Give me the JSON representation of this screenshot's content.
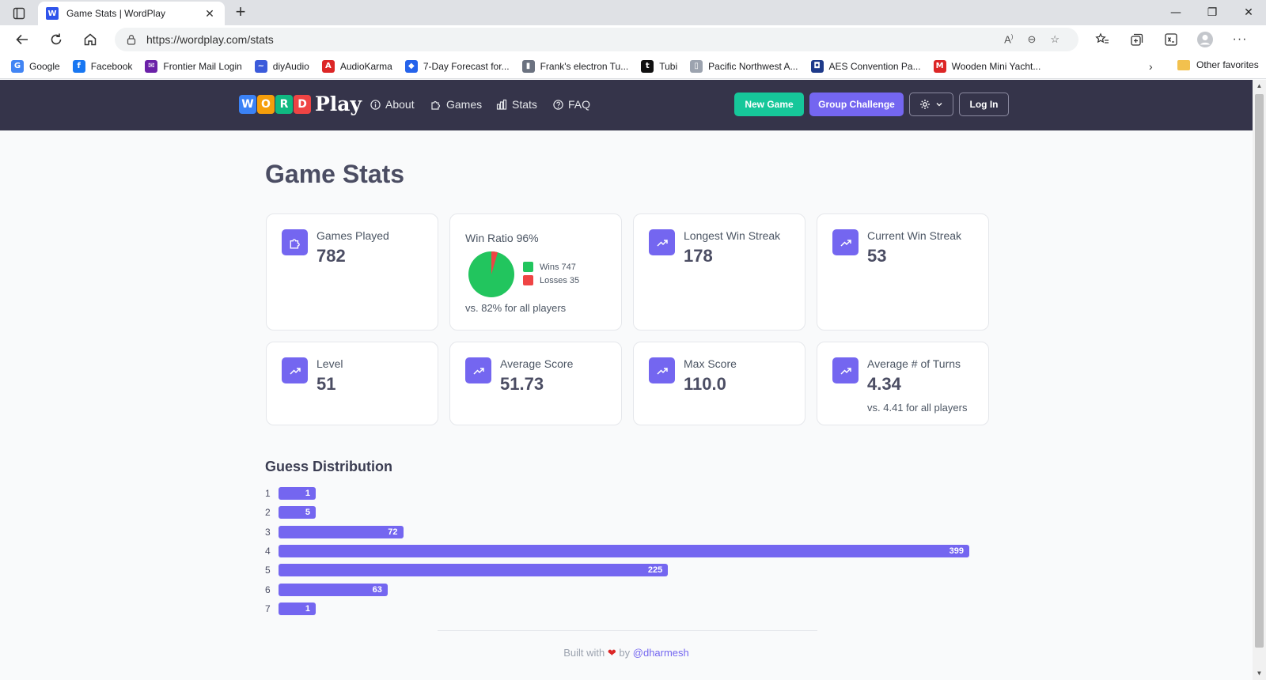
{
  "browser": {
    "tab_title": "Game Stats | WordPlay",
    "tab_favicon": "W",
    "url": "https://wordplay.com/stats",
    "bookmarks": [
      {
        "label": "Google",
        "icon": "G",
        "color": "#4285f4"
      },
      {
        "label": "Facebook",
        "icon": "f",
        "color": "#1877f2"
      },
      {
        "label": "Frontier Mail Login",
        "icon": "✉",
        "color": "#6b21a8"
      },
      {
        "label": "diyAudio",
        "icon": "~",
        "color": "#3b5bdb"
      },
      {
        "label": "AudioKarma",
        "icon": "A",
        "color": "#dc2626"
      },
      {
        "label": "7-Day Forecast for...",
        "icon": "◆",
        "color": "#2563eb"
      },
      {
        "label": "Frank's electron Tu...",
        "icon": "▮",
        "color": "#6b7280"
      },
      {
        "label": "Tubi",
        "icon": "t",
        "color": "#111111"
      },
      {
        "label": "Pacific Northwest A...",
        "icon": "▯",
        "color": "#9ca3af"
      },
      {
        "label": "AES Convention Pa...",
        "icon": "◘",
        "color": "#1e3a8a"
      },
      {
        "label": "Wooden Mini Yacht...",
        "icon": "M",
        "color": "#dc2626"
      }
    ],
    "other_favorites": "Other favorites"
  },
  "header": {
    "logo_tiles": [
      {
        "letter": "W",
        "color": "#3b82f6"
      },
      {
        "letter": "O",
        "color": "#f59e0b"
      },
      {
        "letter": "R",
        "color": "#10b981"
      },
      {
        "letter": "D",
        "color": "#ef4444"
      }
    ],
    "logo_play": "Play",
    "nav": {
      "about": "About",
      "games": "Games",
      "stats": "Stats",
      "faq": "FAQ"
    },
    "new_game": "New Game",
    "group_challenge": "Group Challenge",
    "login": "Log In"
  },
  "page": {
    "title": "Game Stats",
    "cards": {
      "games_played": {
        "label": "Games Played",
        "value": "782"
      },
      "win_ratio": {
        "label": "Win Ratio 96%",
        "wins": "Wins 747",
        "losses": "Losses 35",
        "sub": "vs. 82% for all players",
        "wins_count": 747,
        "losses_count": 35
      },
      "longest_streak": {
        "label": "Longest Win Streak",
        "value": "178"
      },
      "current_streak": {
        "label": "Current Win Streak",
        "value": "53"
      },
      "level": {
        "label": "Level",
        "value": "51"
      },
      "avg_score": {
        "label": "Average Score",
        "value": "51.73"
      },
      "max_score": {
        "label": "Max Score",
        "value": "110.0"
      },
      "avg_turns": {
        "label": "Average # of Turns",
        "value": "4.34",
        "sub": "vs. 4.41 for all players"
      }
    },
    "distribution_title": "Guess Distribution"
  },
  "colors": {
    "accent": "#7466f0",
    "green": "#16c79a",
    "pie_win": "#22c55e",
    "pie_loss": "#ef4444"
  },
  "chart_data": {
    "type": "bar",
    "title": "Guess Distribution",
    "categories": [
      "1",
      "2",
      "3",
      "4",
      "5",
      "6",
      "7"
    ],
    "values": [
      1,
      5,
      72,
      399,
      225,
      63,
      1
    ]
  },
  "footer": {
    "built_with": "Built with",
    "by": "by",
    "author": "@dharmesh"
  }
}
